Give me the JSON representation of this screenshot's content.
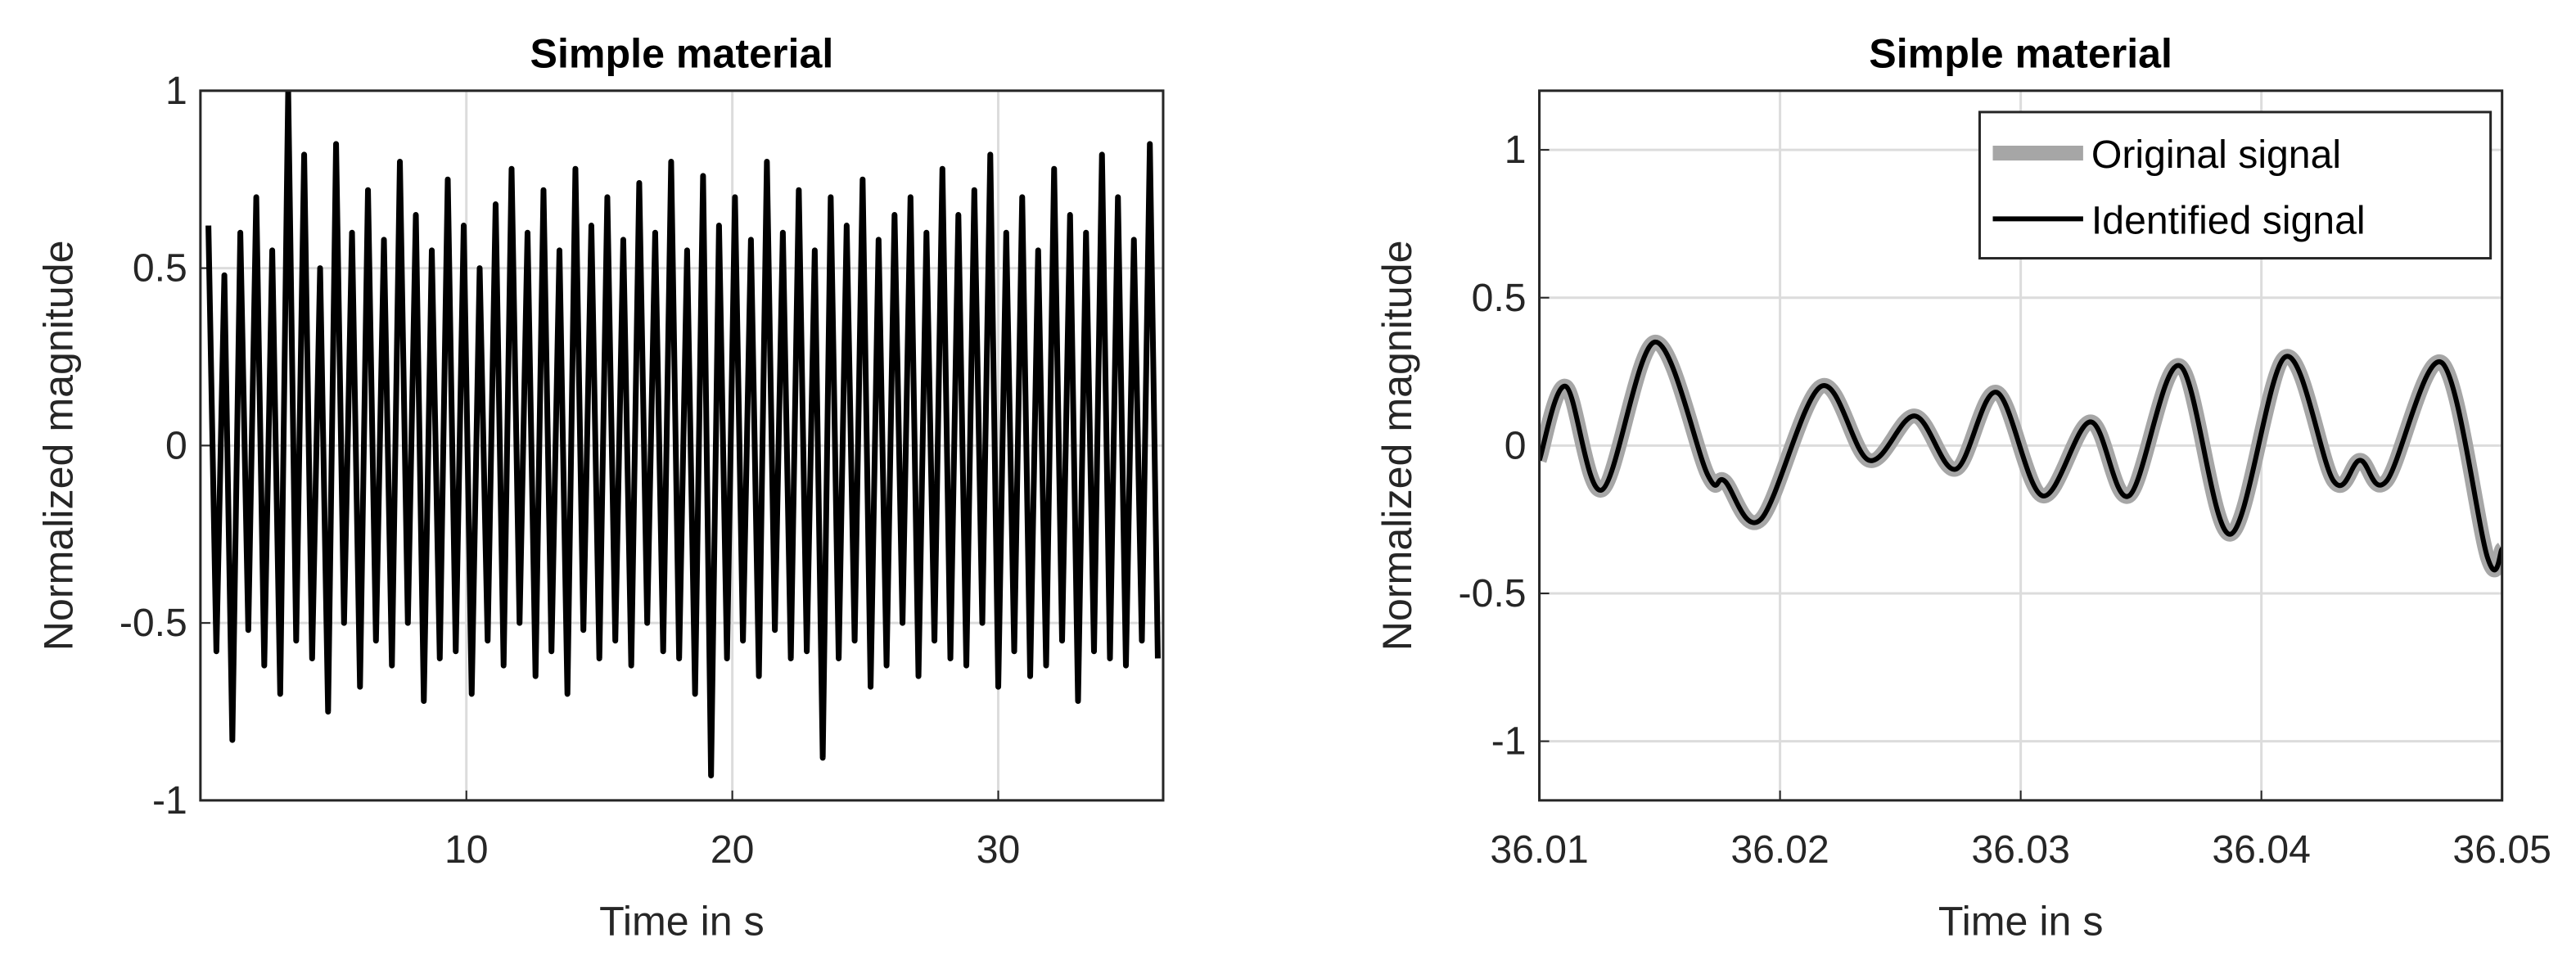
{
  "chart_data": [
    {
      "type": "line",
      "title": "Simple material",
      "xlabel": "Time in s",
      "ylabel": "Normalized magnitude",
      "x": [
        0.3,
        0.6,
        0.9,
        1.2,
        1.5,
        1.8,
        2.1,
        2.4,
        2.7,
        3.0,
        3.3,
        3.6,
        3.9,
        4.2,
        4.5,
        4.8,
        5.1,
        5.4,
        5.7,
        6.0,
        6.3,
        6.6,
        6.9,
        7.2,
        7.5,
        7.8,
        8.1,
        8.4,
        8.7,
        9.0,
        9.3,
        9.6,
        9.9,
        10.2,
        10.5,
        10.8,
        11.1,
        11.4,
        11.7,
        12.0,
        12.3,
        12.6,
        12.9,
        13.2,
        13.5,
        13.8,
        14.1,
        14.4,
        14.7,
        15.0,
        15.3,
        15.6,
        15.9,
        16.2,
        16.5,
        16.8,
        17.1,
        17.4,
        17.7,
        18.0,
        18.3,
        18.6,
        18.9,
        19.2,
        19.5,
        19.8,
        20.1,
        20.4,
        20.7,
        21.0,
        21.3,
        21.6,
        21.9,
        22.2,
        22.5,
        22.8,
        23.1,
        23.4,
        23.7,
        24.0,
        24.3,
        24.6,
        24.9,
        25.2,
        25.5,
        25.8,
        26.1,
        26.4,
        26.7,
        27.0,
        27.3,
        27.6,
        27.9,
        28.2,
        28.5,
        28.8,
        29.1,
        29.4,
        29.7,
        30.0,
        30.3,
        30.6,
        30.9,
        31.2,
        31.5,
        31.8,
        32.1,
        32.4,
        32.7,
        33.0,
        33.3,
        33.6,
        33.9,
        34.2,
        34.5,
        34.8,
        35.1,
        35.4,
        35.7,
        36.0
      ],
      "values": [
        0.62,
        -0.58,
        0.48,
        -0.83,
        0.6,
        -0.52,
        0.7,
        -0.62,
        0.55,
        -0.7,
        1.0,
        -0.55,
        0.82,
        -0.6,
        0.5,
        -0.75,
        0.85,
        -0.5,
        0.6,
        -0.68,
        0.72,
        -0.55,
        0.58,
        -0.62,
        0.8,
        -0.5,
        0.65,
        -0.72,
        0.55,
        -0.6,
        0.75,
        -0.58,
        0.62,
        -0.7,
        0.5,
        -0.55,
        0.68,
        -0.62,
        0.78,
        -0.5,
        0.6,
        -0.65,
        0.72,
        -0.58,
        0.55,
        -0.7,
        0.78,
        -0.52,
        0.62,
        -0.6,
        0.7,
        -0.55,
        0.58,
        -0.62,
        0.74,
        -0.5,
        0.6,
        -0.58,
        0.8,
        -0.6,
        0.55,
        -0.7,
        0.76,
        -0.93,
        0.62,
        -0.6,
        0.7,
        -0.55,
        0.58,
        -0.65,
        0.8,
        -0.52,
        0.6,
        -0.6,
        0.72,
        -0.58,
        0.55,
        -0.88,
        0.7,
        -0.6,
        0.62,
        -0.55,
        0.75,
        -0.68,
        0.58,
        -0.62,
        0.65,
        -0.5,
        0.7,
        -0.65,
        0.6,
        -0.55,
        0.78,
        -0.6,
        0.65,
        -0.62,
        0.72,
        -0.5,
        0.82,
        -0.68,
        0.6,
        -0.58,
        0.7,
        -0.65,
        0.55,
        -0.62,
        0.78,
        -0.55,
        0.65,
        -0.72,
        0.6,
        -0.58,
        0.82,
        -0.6,
        0.7,
        -0.62,
        0.58,
        -0.55,
        0.85,
        -0.6
      ],
      "color": "#000000",
      "xlim": [
        0,
        36.2
      ],
      "xticks": [
        10,
        20,
        30
      ],
      "ylim": [
        -1,
        1
      ],
      "yticks": [
        -1,
        -0.5,
        0,
        0.5,
        1
      ],
      "grid": true
    },
    {
      "type": "line",
      "title": "Simple material",
      "xlabel": "Time in s",
      "ylabel": "Normalized magnitude",
      "x": [
        36.01,
        36.0111,
        36.0126,
        36.0148,
        36.017,
        36.0177,
        36.0192,
        36.0217,
        36.0237,
        36.0256,
        36.0273,
        36.029,
        36.0309,
        36.0329,
        36.0345,
        36.0366,
        36.0387,
        36.041,
        36.043,
        36.0441,
        36.0452,
        36.0475,
        36.0494,
        36.05
      ],
      "series": [
        {
          "name": "Original signal",
          "color": "#a6a6a6",
          "values": [
            -0.05,
            0.2,
            -0.15,
            0.35,
            -0.1,
            -0.12,
            -0.25,
            0.2,
            -0.05,
            0.1,
            -0.08,
            0.18,
            -0.17,
            0.08,
            -0.17,
            0.27,
            -0.3,
            0.3,
            -0.12,
            -0.05,
            -0.12,
            0.28,
            -0.38,
            -0.35
          ]
        },
        {
          "name": "Identified signal",
          "color": "#000000",
          "values": [
            -0.05,
            0.2,
            -0.15,
            0.35,
            -0.1,
            -0.12,
            -0.25,
            0.2,
            -0.05,
            0.1,
            -0.08,
            0.18,
            -0.17,
            0.08,
            -0.17,
            0.27,
            -0.3,
            0.3,
            -0.12,
            -0.05,
            -0.12,
            0.28,
            -0.38,
            -0.35
          ]
        }
      ],
      "xlim": [
        36.01,
        36.05
      ],
      "xticks": [
        36.01,
        36.02,
        36.03,
        36.04,
        36.05
      ],
      "ylim": [
        -1.2,
        1.2
      ],
      "yticks": [
        -1,
        -0.5,
        0,
        0.5,
        1
      ],
      "grid": true,
      "legend": "upper right"
    }
  ]
}
